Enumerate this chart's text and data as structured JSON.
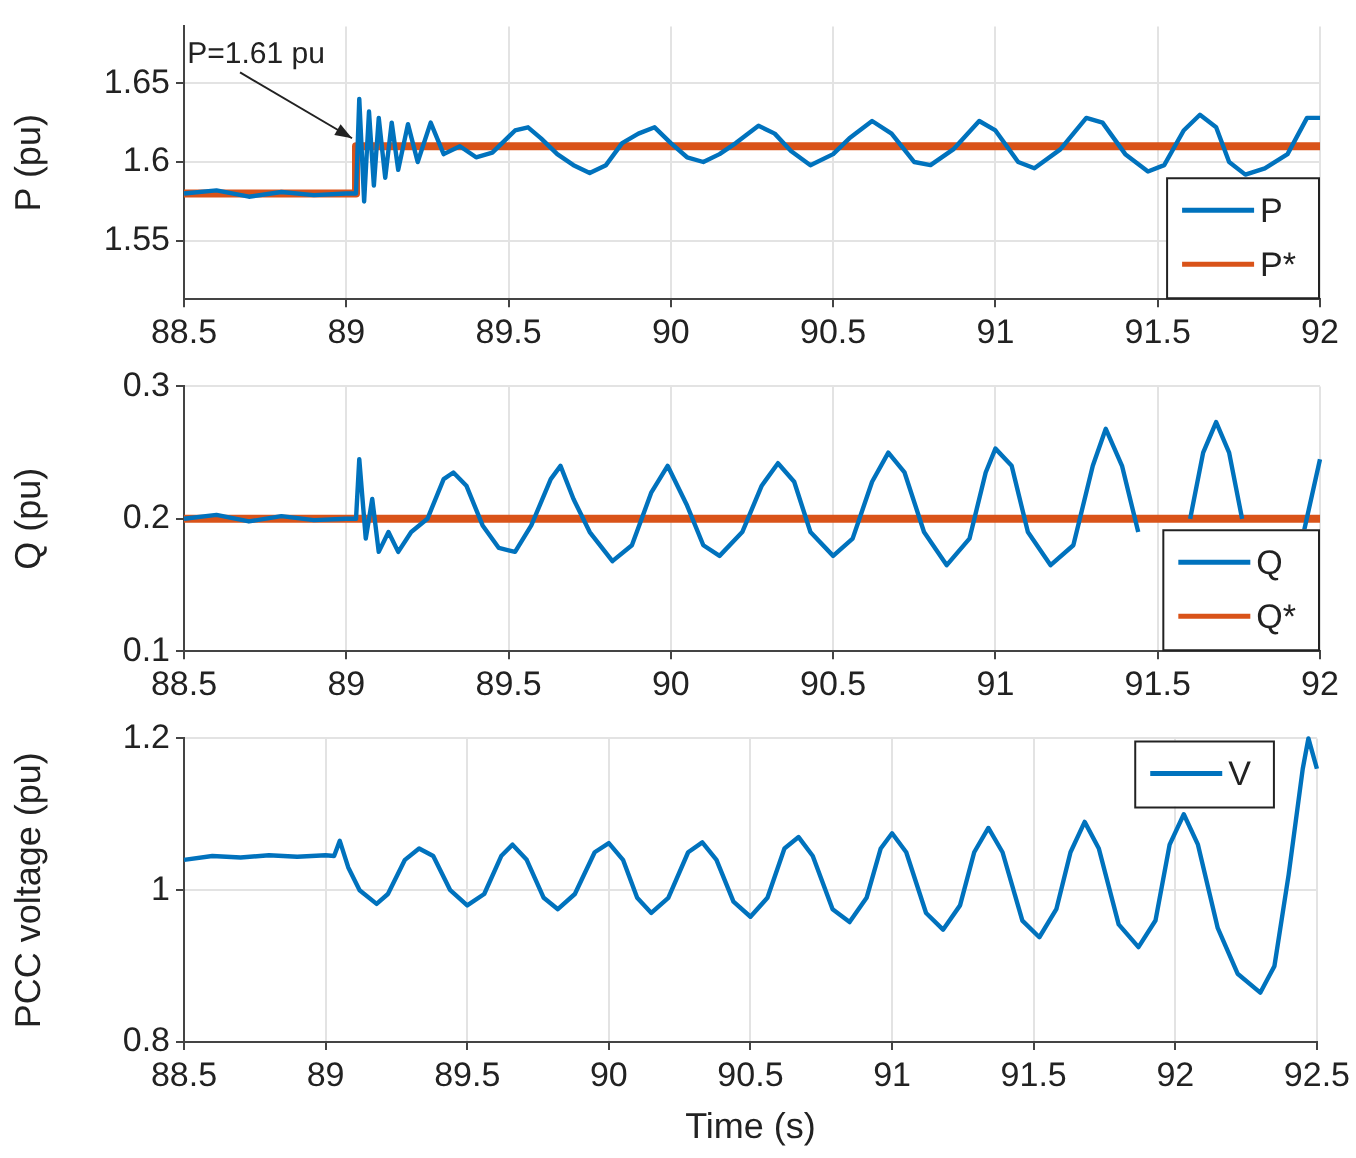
{
  "chart_data": [
    {
      "type": "line",
      "ylabel": "P (pu)",
      "xlim": [
        88.5,
        92
      ],
      "xticks": [
        88.5,
        89,
        89.5,
        90,
        90.5,
        91,
        91.5,
        92
      ],
      "ylim": [
        1.513,
        1.686
      ],
      "yticks": [
        1.55,
        1.6,
        1.65
      ],
      "grid": true,
      "legend": "bottom right",
      "annotations": [
        {
          "text": "P=1.61 pu",
          "x": 89.03,
          "y": 1.61
        }
      ],
      "series": [
        {
          "name": "P",
          "color": "#0072bd",
          "x": [
            88.5,
            88.6,
            88.7,
            88.8,
            88.9,
            89.0,
            89.03,
            89.04,
            89.055,
            89.07,
            89.085,
            89.1,
            89.12,
            89.14,
            89.16,
            89.19,
            89.22,
            89.26,
            89.3,
            89.35,
            89.4,
            89.45,
            89.52,
            89.56,
            89.6,
            89.65,
            89.7,
            89.75,
            89.8,
            89.85,
            89.9,
            89.95,
            90.0,
            90.05,
            90.1,
            90.15,
            90.2,
            90.27,
            90.32,
            90.37,
            90.43,
            90.5,
            90.55,
            90.62,
            90.68,
            90.75,
            90.8,
            90.87,
            90.95,
            91.0,
            91.07,
            91.12,
            91.2,
            91.28,
            91.33,
            91.4,
            91.47,
            91.52,
            91.58,
            91.63,
            91.68,
            91.72,
            91.77,
            91.83,
            91.9,
            91.96,
            92.0
          ],
          "values": [
            1.58,
            1.582,
            1.578,
            1.581,
            1.579,
            1.58,
            1.58,
            1.64,
            1.575,
            1.632,
            1.585,
            1.628,
            1.59,
            1.625,
            1.595,
            1.624,
            1.6,
            1.625,
            1.605,
            1.61,
            1.603,
            1.606,
            1.62,
            1.622,
            1.615,
            1.605,
            1.598,
            1.593,
            1.598,
            1.612,
            1.618,
            1.622,
            1.612,
            1.603,
            1.6,
            1.605,
            1.612,
            1.623,
            1.618,
            1.607,
            1.598,
            1.605,
            1.615,
            1.626,
            1.618,
            1.6,
            1.598,
            1.608,
            1.626,
            1.62,
            1.6,
            1.596,
            1.608,
            1.628,
            1.625,
            1.605,
            1.594,
            1.598,
            1.62,
            1.63,
            1.622,
            1.6,
            1.592,
            1.596,
            1.605,
            1.628,
            1.628
          ]
        },
        {
          "name": "P*",
          "color": "#d95319",
          "x": [
            88.5,
            89.03,
            89.03,
            92
          ],
          "values": [
            1.58,
            1.58,
            1.61,
            1.61
          ]
        }
      ]
    },
    {
      "type": "line",
      "ylabel": "Q (pu)",
      "xlim": [
        88.5,
        92
      ],
      "xticks": [
        88.5,
        89,
        89.5,
        90,
        90.5,
        91,
        91.5,
        92
      ],
      "ylim": [
        0.1,
        0.3
      ],
      "yticks": [
        0.1,
        0.2,
        0.3
      ],
      "grid": true,
      "legend": "bottom right",
      "series": [
        {
          "name": "Q",
          "color": "#0072bd",
          "x": [
            88.5,
            88.6,
            88.7,
            88.8,
            88.9,
            89.0,
            89.03,
            89.04,
            89.06,
            89.08,
            89.1,
            89.13,
            89.16,
            89.2,
            89.25,
            89.3,
            89.33,
            89.37,
            89.42,
            89.47,
            89.52,
            89.57,
            89.63,
            89.66,
            89.7,
            89.75,
            89.82,
            89.88,
            89.94,
            89.99,
            90.05,
            90.1,
            90.15,
            90.22,
            90.28,
            90.33,
            90.38,
            90.43,
            90.5,
            90.56,
            90.62,
            90.67,
            90.72,
            90.78,
            90.85,
            90.92,
            90.97,
            91.0,
            91.05,
            91.1,
            91.17,
            91.24,
            91.3,
            91.34,
            91.39,
            91.44,
            91.5,
            91.55,
            91.6,
            91.64,
            91.68,
            91.72,
            91.76,
            91.8,
            91.88,
            91.95,
            92.0
          ],
          "values": [
            0.2,
            0.203,
            0.198,
            0.202,
            0.199,
            0.2,
            0.2,
            0.245,
            0.185,
            0.215,
            0.175,
            0.19,
            0.175,
            0.19,
            0.2,
            0.23,
            0.235,
            0.225,
            0.195,
            0.178,
            0.175,
            0.195,
            0.23,
            0.24,
            0.215,
            0.19,
            0.168,
            0.18,
            0.22,
            0.24,
            0.21,
            0.18,
            0.172,
            0.19,
            0.225,
            0.242,
            0.228,
            0.19,
            0.172,
            0.185,
            0.228,
            0.25,
            0.235,
            0.19,
            0.165,
            0.185,
            0.235,
            0.253,
            0.24,
            0.19,
            0.165,
            0.18,
            0.24,
            0.268,
            0.24,
            0.19,
            null,
            null,
            0.2,
            0.25,
            0.273,
            0.25,
            0.2,
            null,
            null,
            0.19,
            0.245
          ]
        },
        {
          "name": "Q*",
          "color": "#d95319",
          "x": [
            88.5,
            92
          ],
          "values": [
            0.2,
            0.2
          ]
        }
      ]
    },
    {
      "type": "line",
      "ylabel": "PCC voltage (pu)",
      "xlabel": "Time (s)",
      "xlim": [
        88.5,
        92.5
      ],
      "xticks": [
        88.5,
        89,
        89.5,
        90,
        90.5,
        91,
        91.5,
        92,
        92.5
      ],
      "ylim": [
        0.8,
        1.2
      ],
      "yticks": [
        0.8,
        1,
        1.2
      ],
      "grid": true,
      "legend": "top right",
      "series": [
        {
          "name": "V",
          "color": "#0072bd",
          "x": [
            88.5,
            88.6,
            88.7,
            88.8,
            88.9,
            89.0,
            89.03,
            89.05,
            89.08,
            89.12,
            89.18,
            89.22,
            89.28,
            89.33,
            89.38,
            89.44,
            89.5,
            89.56,
            89.62,
            89.66,
            89.71,
            89.77,
            89.82,
            89.88,
            89.95,
            90.0,
            90.05,
            90.1,
            90.15,
            90.21,
            90.28,
            90.33,
            90.38,
            90.44,
            90.5,
            90.56,
            90.62,
            90.67,
            90.72,
            90.79,
            90.85,
            90.91,
            90.96,
            91.0,
            91.05,
            91.12,
            91.18,
            91.24,
            91.29,
            91.34,
            91.39,
            91.46,
            91.52,
            91.58,
            91.63,
            91.68,
            91.73,
            91.8,
            91.87,
            91.93,
            91.98,
            92.03,
            92.08,
            92.15,
            92.22,
            92.3,
            92.35,
            92.4,
            92.45,
            92.47,
            92.5
          ],
          "values": [
            1.04,
            1.045,
            1.043,
            1.046,
            1.044,
            1.046,
            1.045,
            1.065,
            1.03,
            1.0,
            0.982,
            0.995,
            1.04,
            1.055,
            1.045,
            1.0,
            0.98,
            0.995,
            1.045,
            1.06,
            1.04,
            0.99,
            0.975,
            0.995,
            1.05,
            1.062,
            1.04,
            0.99,
            0.97,
            0.99,
            1.05,
            1.063,
            1.04,
            0.985,
            0.965,
            0.99,
            1.055,
            1.07,
            1.045,
            0.975,
            0.958,
            0.99,
            1.055,
            1.075,
            1.05,
            0.97,
            0.948,
            0.98,
            1.05,
            1.082,
            1.05,
            0.96,
            0.938,
            0.975,
            1.05,
            1.09,
            1.055,
            0.955,
            0.925,
            0.96,
            1.06,
            1.1,
            1.06,
            0.95,
            0.89,
            0.865,
            0.9,
            1.02,
            1.16,
            1.2,
            1.16
          ]
        }
      ]
    }
  ]
}
